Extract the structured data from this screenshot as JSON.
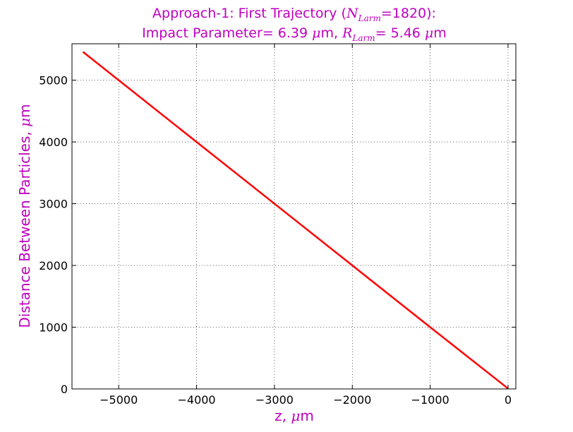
{
  "chart_data": {
    "type": "line",
    "title": {
      "line1_prefix": "Approach-1: First Trajectory (",
      "line1_math_N": "N",
      "line1_math_sub": "Larm",
      "line1_suffix": "=1820):",
      "line2_prefix": "Impact Parameter= 6.39 ",
      "line2_mu1": "μ",
      "line2_mid": "m, ",
      "line2_math_R": "R",
      "line2_math_sub": "Larm",
      "line2_eq": "= 5.46 ",
      "line2_mu2": "μ",
      "line2_suffix": "m"
    },
    "xlabel": {
      "prefix": "z, ",
      "mu": "μ",
      "suffix": "m"
    },
    "ylabel": {
      "prefix": "Distance Between Particles, ",
      "mu": "μ",
      "suffix": "m"
    },
    "xlim": [
      -5600,
      100
    ],
    "ylim": [
      0,
      5590
    ],
    "xticks": [
      {
        "value": -5000,
        "label": "−5000"
      },
      {
        "value": -4000,
        "label": "−4000"
      },
      {
        "value": -3000,
        "label": "−3000"
      },
      {
        "value": -2000,
        "label": "−2000"
      },
      {
        "value": -1000,
        "label": "−1000"
      },
      {
        "value": 0,
        "label": "0"
      }
    ],
    "yticks": [
      {
        "value": 0,
        "label": "0"
      },
      {
        "value": 1000,
        "label": "1000"
      },
      {
        "value": 2000,
        "label": "2000"
      },
      {
        "value": 3000,
        "label": "3000"
      },
      {
        "value": 4000,
        "label": "4000"
      },
      {
        "value": 5000,
        "label": "5000"
      }
    ],
    "grid": true,
    "series": [
      {
        "color": "#ff0000",
        "x": [
          -5460,
          -5000,
          -4000,
          -3000,
          -2000,
          -1000,
          0
        ],
        "y": [
          5460,
          5000,
          4000,
          3000,
          2000,
          1000,
          6.39
        ]
      }
    ]
  }
}
